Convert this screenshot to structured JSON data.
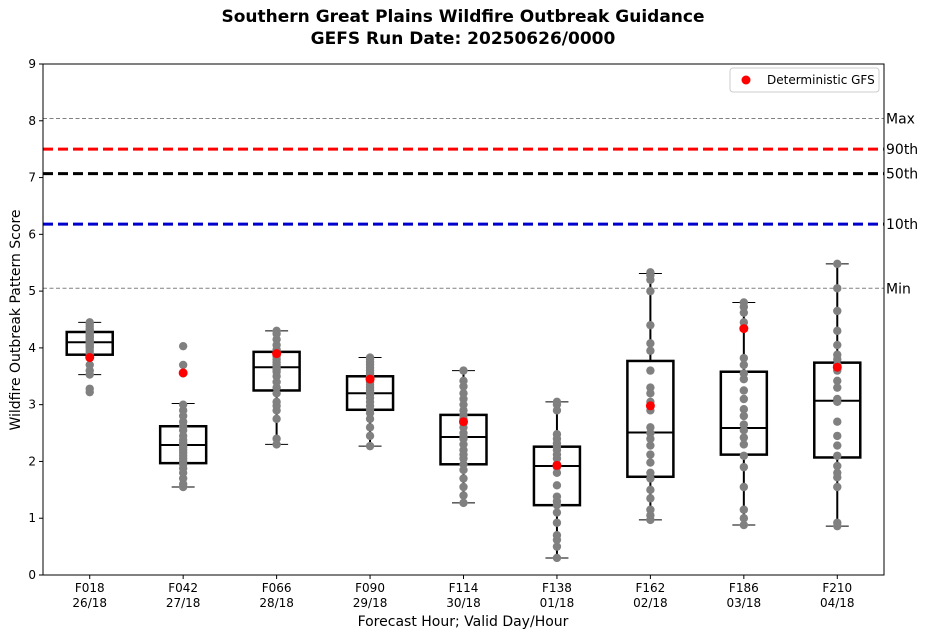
{
  "chart_data": {
    "type": "boxplot",
    "title_line1": "Southern Great Plains Wildfire Outbreak Guidance",
    "title_line2": "GEFS Run Date: 20250626/0000",
    "xlabel": "Forecast Hour; Valid Day/Hour",
    "ylabel": "Wildfire Outbreak Pattern Score",
    "ylim": [
      0,
      9
    ],
    "yticks": [
      0,
      1,
      2,
      3,
      4,
      5,
      6,
      7,
      8,
      9
    ],
    "grid": false,
    "legend": {
      "placement": "top-right",
      "entries": [
        {
          "label": "Deterministic GFS",
          "color": "#ff0000"
        }
      ]
    },
    "reference_lines": [
      {
        "label": "Max",
        "value": 8.04,
        "color": "#808080",
        "style": "dashed-thin"
      },
      {
        "label": "90th",
        "value": 7.5,
        "color": "#ff0000",
        "style": "dashed-thick"
      },
      {
        "label": "50th",
        "value": 7.07,
        "color": "#000000",
        "style": "dashed-thick"
      },
      {
        "label": "10th",
        "value": 6.18,
        "color": "#0000cc",
        "style": "dashed-thick"
      },
      {
        "label": "Min",
        "value": 5.05,
        "color": "#808080",
        "style": "dashed-thin"
      }
    ],
    "colors": {
      "ensemble_points": "#808080",
      "deterministic": "#ff0000",
      "box": "#000000"
    },
    "categories": [
      {
        "hour": "F018",
        "valid": "26/18",
        "whisker_low": 3.53,
        "q1": 3.88,
        "median": 4.1,
        "q3": 4.28,
        "whisker_high": 4.45,
        "deterministic": 3.83,
        "members": [
          3.22,
          3.28,
          3.53,
          3.6,
          3.7,
          3.85,
          3.9,
          3.95,
          4.0,
          4.02,
          4.05,
          4.08,
          4.1,
          4.12,
          4.15,
          4.18,
          4.2,
          4.22,
          4.25,
          4.28,
          4.3,
          4.33,
          4.38,
          4.42,
          4.45
        ]
      },
      {
        "hour": "F042",
        "valid": "27/18",
        "whisker_low": 1.55,
        "q1": 1.97,
        "median": 2.29,
        "q3": 2.62,
        "whisker_high": 3.02,
        "deterministic": 3.56,
        "members": [
          1.55,
          1.6,
          1.7,
          1.8,
          1.88,
          1.95,
          2.0,
          2.05,
          2.1,
          2.15,
          2.2,
          2.25,
          2.3,
          2.33,
          2.38,
          2.45,
          2.55,
          2.62,
          2.7,
          2.8,
          2.9,
          3.0,
          3.55,
          3.7,
          4.03
        ]
      },
      {
        "hour": "F066",
        "valid": "28/18",
        "whisker_low": 2.3,
        "q1": 3.25,
        "median": 3.66,
        "q3": 3.93,
        "whisker_high": 4.3,
        "deterministic": 3.9,
        "members": [
          2.3,
          2.4,
          2.75,
          2.9,
          2.98,
          3.05,
          3.2,
          3.3,
          3.4,
          3.5,
          3.58,
          3.62,
          3.66,
          3.7,
          3.75,
          3.8,
          3.85,
          3.88,
          3.93,
          3.97,
          4.05,
          4.15,
          4.25,
          4.3
        ]
      },
      {
        "hour": "F090",
        "valid": "29/18",
        "whisker_low": 2.27,
        "q1": 2.91,
        "median": 3.2,
        "q3": 3.5,
        "whisker_high": 3.83,
        "deterministic": 3.45,
        "members": [
          2.27,
          2.45,
          2.6,
          2.75,
          2.85,
          2.91,
          2.98,
          3.05,
          3.12,
          3.18,
          3.2,
          3.25,
          3.3,
          3.35,
          3.4,
          3.48,
          3.5,
          3.55,
          3.6,
          3.65,
          3.7,
          3.75,
          3.8,
          3.83
        ]
      },
      {
        "hour": "F114",
        "valid": "30/18",
        "whisker_low": 1.27,
        "q1": 1.95,
        "median": 2.43,
        "q3": 2.82,
        "whisker_high": 3.6,
        "deterministic": 2.7,
        "members": [
          1.27,
          1.4,
          1.55,
          1.7,
          1.85,
          1.95,
          2.05,
          2.12,
          2.2,
          2.3,
          2.4,
          2.43,
          2.5,
          2.6,
          2.68,
          2.75,
          2.82,
          2.9,
          3.0,
          3.1,
          3.2,
          3.32,
          3.42,
          3.6
        ]
      },
      {
        "hour": "F138",
        "valid": "01/18",
        "whisker_low": 0.3,
        "q1": 1.23,
        "median": 1.92,
        "q3": 2.26,
        "whisker_high": 3.05,
        "deterministic": 1.93,
        "members": [
          0.3,
          0.5,
          0.62,
          0.7,
          0.92,
          1.1,
          1.23,
          1.3,
          1.38,
          1.58,
          1.8,
          1.9,
          1.95,
          2.05,
          2.12,
          2.2,
          2.26,
          2.32,
          2.4,
          2.48,
          2.9,
          3.0,
          3.05
        ]
      },
      {
        "hour": "F162",
        "valid": "02/18",
        "whisker_low": 0.97,
        "q1": 1.73,
        "median": 2.51,
        "q3": 3.77,
        "whisker_high": 5.31,
        "deterministic": 2.98,
        "members": [
          0.97,
          1.05,
          1.15,
          1.35,
          1.5,
          1.7,
          1.8,
          1.98,
          2.12,
          2.28,
          2.4,
          2.5,
          2.6,
          2.9,
          3.05,
          3.2,
          3.3,
          3.6,
          3.95,
          4.08,
          4.4,
          5.0,
          5.2,
          5.28,
          5.33
        ]
      },
      {
        "hour": "F186",
        "valid": "03/18",
        "whisker_low": 0.88,
        "q1": 2.12,
        "median": 2.59,
        "q3": 3.58,
        "whisker_high": 4.8,
        "deterministic": 4.34,
        "members": [
          0.88,
          1.0,
          1.15,
          1.55,
          1.9,
          2.1,
          2.3,
          2.42,
          2.55,
          2.65,
          2.8,
          2.92,
          3.1,
          3.25,
          3.45,
          3.55,
          3.7,
          3.82,
          4.35,
          4.45,
          4.62,
          4.72,
          4.8
        ]
      },
      {
        "hour": "F210",
        "valid": "04/18",
        "whisker_low": 0.86,
        "q1": 2.07,
        "median": 3.07,
        "q3": 3.74,
        "whisker_high": 5.48,
        "deterministic": 3.66,
        "members": [
          0.86,
          0.92,
          1.55,
          1.72,
          1.8,
          1.92,
          2.1,
          2.28,
          2.45,
          2.7,
          3.05,
          3.1,
          3.3,
          3.42,
          3.6,
          3.7,
          3.8,
          3.88,
          4.05,
          4.3,
          4.65,
          5.05,
          5.48
        ]
      }
    ]
  }
}
